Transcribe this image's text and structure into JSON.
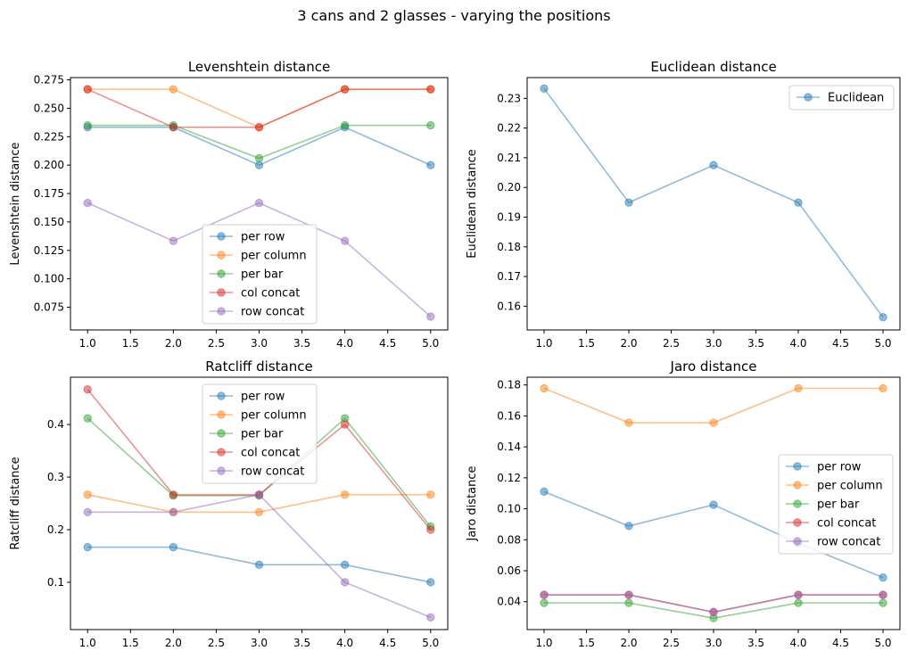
{
  "figure": {
    "suptitle": "3 cans and 2 glasses - varying the positions"
  },
  "colors": {
    "per_row": "#1f77b4",
    "per_column": "#ff7f0e",
    "per_bar": "#2ca02c",
    "col_concat": "#d62728",
    "row_concat": "#9467bd",
    "euclidean": "#1f77b4"
  },
  "chart_data": [
    {
      "type": "line",
      "title": "Levenshtein distance",
      "xlabel": "",
      "ylabel": "Levenshtein distance",
      "x": [
        1,
        2,
        3,
        4,
        5
      ],
      "xlim": [
        0.8,
        5.2
      ],
      "ylim": [
        0.055,
        0.277
      ],
      "xticks": [
        1.0,
        1.5,
        2.0,
        2.5,
        3.0,
        3.5,
        4.0,
        4.5,
        5.0
      ],
      "yticks": [
        0.075,
        0.1,
        0.125,
        0.15,
        0.175,
        0.2,
        0.225,
        0.25,
        0.275
      ],
      "ytick_decimals": 3,
      "grid": false,
      "legend": "lower-center",
      "series": [
        {
          "name": "per row",
          "color": "#1f77b4",
          "values": [
            0.2333,
            0.2333,
            0.2,
            0.2333,
            0.2
          ]
        },
        {
          "name": "per column",
          "color": "#ff7f0e",
          "values": [
            0.2667,
            0.2667,
            0.2333,
            0.2667,
            0.2667
          ]
        },
        {
          "name": "per bar",
          "color": "#2ca02c",
          "values": [
            0.235,
            0.235,
            0.206,
            0.235,
            0.235
          ]
        },
        {
          "name": "col concat",
          "color": "#d62728",
          "values": [
            0.2667,
            0.2333,
            0.2333,
            0.2667,
            0.2667
          ]
        },
        {
          "name": "row concat",
          "color": "#9467bd",
          "values": [
            0.1667,
            0.1333,
            0.1667,
            0.1333,
            0.0667
          ]
        }
      ]
    },
    {
      "type": "line",
      "title": "Euclidean distance",
      "xlabel": "",
      "ylabel": "Euclidean distance",
      "x": [
        1,
        2,
        3,
        4,
        5
      ],
      "xlim": [
        0.8,
        5.2
      ],
      "ylim": [
        0.152,
        0.237
      ],
      "xticks": [
        1.0,
        1.5,
        2.0,
        2.5,
        3.0,
        3.5,
        4.0,
        4.5,
        5.0
      ],
      "yticks": [
        0.16,
        0.17,
        0.18,
        0.19,
        0.2,
        0.21,
        0.22,
        0.23
      ],
      "ytick_decimals": 2,
      "grid": false,
      "legend": "top-right",
      "series": [
        {
          "name": "Euclidean",
          "color": "#1f77b4",
          "values": [
            0.2333,
            0.1949,
            0.2075,
            0.1949,
            0.1563
          ]
        }
      ]
    },
    {
      "type": "line",
      "title": "Ratcliff distance",
      "xlabel": "",
      "ylabel": "Ratcliff distance",
      "x": [
        1,
        2,
        3,
        4,
        5
      ],
      "xlim": [
        0.8,
        5.2
      ],
      "ylim": [
        0.01,
        0.49
      ],
      "xticks": [
        1.0,
        1.5,
        2.0,
        2.5,
        3.0,
        3.5,
        4.0,
        4.5,
        5.0
      ],
      "yticks": [
        0.1,
        0.2,
        0.3,
        0.4
      ],
      "ytick_decimals": 1,
      "grid": false,
      "legend": "top-center",
      "series": [
        {
          "name": "per row",
          "color": "#1f77b4",
          "values": [
            0.1667,
            0.1667,
            0.1333,
            0.1333,
            0.1
          ]
        },
        {
          "name": "per column",
          "color": "#ff7f0e",
          "values": [
            0.2667,
            0.2333,
            0.2333,
            0.2667,
            0.2667
          ]
        },
        {
          "name": "per bar",
          "color": "#2ca02c",
          "values": [
            0.4118,
            0.2647,
            0.2647,
            0.4118,
            0.2059
          ]
        },
        {
          "name": "col concat",
          "color": "#d62728",
          "values": [
            0.4667,
            0.2667,
            0.2667,
            0.4,
            0.2
          ]
        },
        {
          "name": "row concat",
          "color": "#9467bd",
          "values": [
            0.2333,
            0.2333,
            0.2667,
            0.1,
            0.0333
          ]
        }
      ]
    },
    {
      "type": "line",
      "title": "Jaro distance",
      "xlabel": "",
      "ylabel": "Jaro distance",
      "x": [
        1,
        2,
        3,
        4,
        5
      ],
      "xlim": [
        0.8,
        5.2
      ],
      "ylim": [
        0.022,
        0.185
      ],
      "xticks": [
        1.0,
        1.5,
        2.0,
        2.5,
        3.0,
        3.5,
        4.0,
        4.5,
        5.0
      ],
      "yticks": [
        0.04,
        0.06,
        0.08,
        0.1,
        0.12,
        0.14,
        0.16,
        0.18
      ],
      "ytick_decimals": 2,
      "grid": false,
      "legend": "center-right",
      "series": [
        {
          "name": "per row",
          "color": "#1f77b4",
          "values": [
            0.1111,
            0.0889,
            0.1026,
            0.0778,
            0.0556
          ]
        },
        {
          "name": "per column",
          "color": "#ff7f0e",
          "values": [
            0.1778,
            0.1556,
            0.1556,
            0.1778,
            0.1778
          ]
        },
        {
          "name": "per bar",
          "color": "#2ca02c",
          "values": [
            0.0392,
            0.0392,
            0.0294,
            0.0392,
            0.0392
          ]
        },
        {
          "name": "col concat",
          "color": "#d62728",
          "values": [
            0.0444,
            0.0444,
            0.0333,
            0.0444,
            0.0444
          ]
        },
        {
          "name": "row concat",
          "color": "#9467bd",
          "values": [
            0.0444,
            0.0444,
            0.0333,
            0.0444,
            0.0444
          ]
        }
      ]
    }
  ]
}
